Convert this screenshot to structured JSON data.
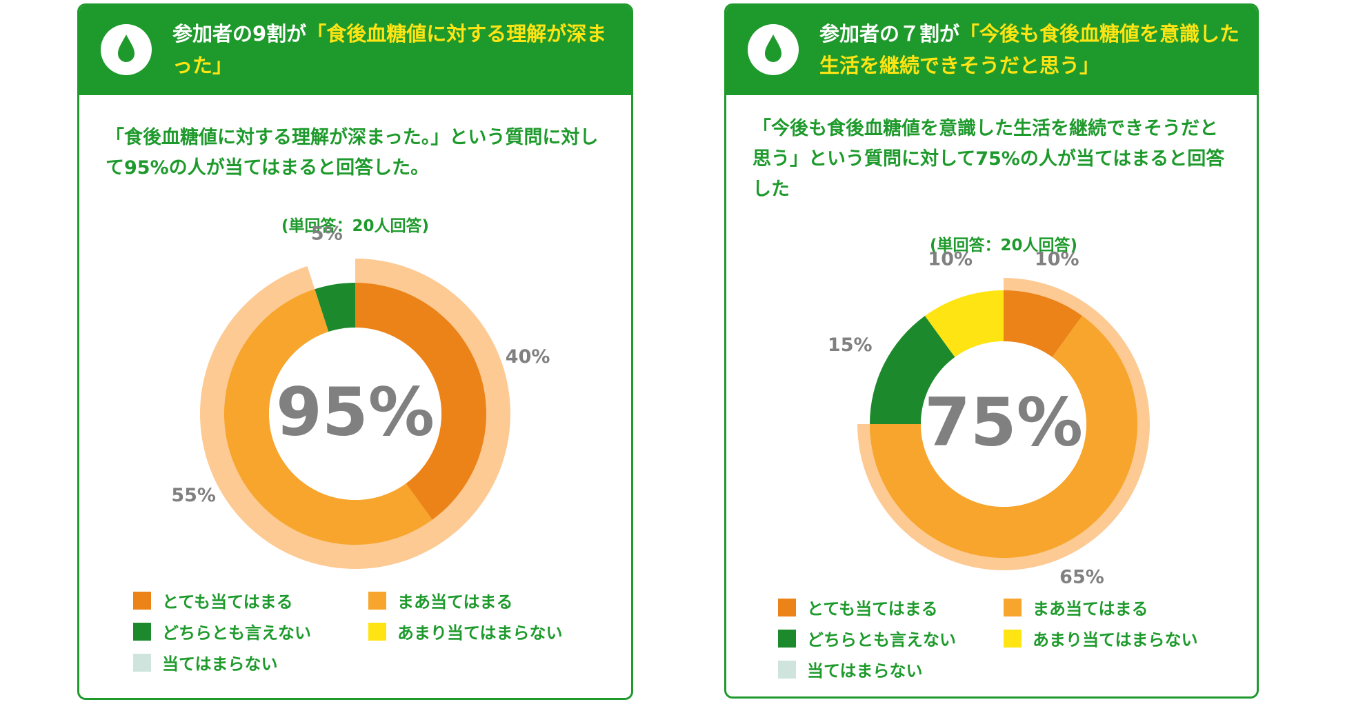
{
  "chart_data": [
    {
      "type": "donut",
      "header_lead": "参加者の9割が",
      "header_highlight": "「食後血糖値に対する理解が深まった」",
      "description": "「食後血糖値に対する理解が深まった。」という質問に対して95%の人が当てはまると回答した。",
      "note": "(単回答：20人回答)",
      "center_label": "95%",
      "categories": [
        "とても当てはまる",
        "まあ当てはまる",
        "どちらとも言えない",
        "あまり当てはまらない",
        "当てはまらない"
      ],
      "colors": [
        "#ec8319",
        "#f7a52c",
        "#1c8a2c",
        "#ffe414",
        "#cfe4dc"
      ],
      "values": [
        40,
        55,
        5,
        0,
        0
      ],
      "value_labels": [
        "40%",
        "55%",
        "5%",
        null,
        null
      ]
    },
    {
      "type": "donut",
      "header_lead": "参加者の７割が",
      "header_highlight": "「今後も食後血糖値を意識した生活を継続できそうだと思う」",
      "description": "「今後も食後血糖値を意識した生活を継続できそうだと思う」という質問に対して75%の人が当てはまると回答した",
      "note": "(単回答：20人回答)",
      "center_label": "75%",
      "categories": [
        "とても当てはまる",
        "まあ当てはまる",
        "どちらとも言えない",
        "あまり当てはまらない",
        "当てはまらない"
      ],
      "colors": [
        "#ec8319",
        "#f7a52c",
        "#1c8a2c",
        "#ffe414",
        "#cfe4dc"
      ],
      "values": [
        10,
        65,
        15,
        10,
        0
      ],
      "value_labels": [
        "10%",
        "65%",
        "15%",
        "10%",
        null
      ]
    }
  ]
}
